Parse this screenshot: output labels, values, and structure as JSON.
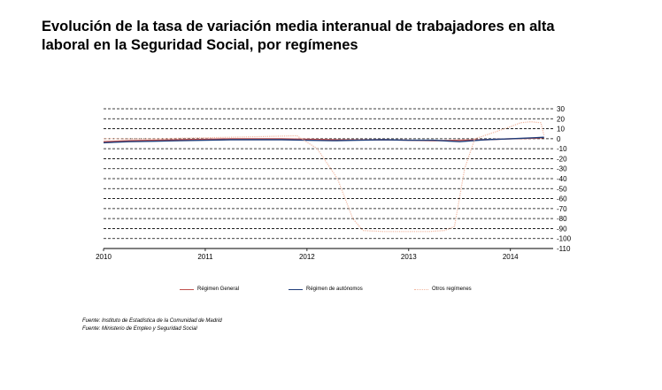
{
  "title": {
    "line1": "Evolución de la tasa de variación media interanual de trabajadores en alta",
    "line2": "laboral en la Seguridad Social, por  regímenes"
  },
  "sources": [
    "Fuente: Instituto de Estadística de la Comunidad de Madrid",
    "Fuente: Ministerio de Empleo y Seguridad Social"
  ],
  "chart_data": {
    "type": "line",
    "title": "",
    "xlabel": "",
    "ylabel": "",
    "xlim": [
      2010,
      2014.42
    ],
    "ylim": [
      -110,
      30
    ],
    "y_ticks": [
      30,
      20,
      10,
      0,
      -10,
      -20,
      -30,
      -40,
      -50,
      -60,
      -70,
      -80,
      -90,
      -100,
      -110
    ],
    "x_ticks": [
      "2010",
      "2011",
      "2012",
      "2013",
      "2014"
    ],
    "grid": "horizontal dashed",
    "legend_position": "bottom",
    "series": [
      {
        "name": "Régimen General",
        "color": "#c0504d",
        "style": "solid",
        "x": [
          2010.0,
          2010.25,
          2010.5,
          2010.75,
          2011.0,
          2011.25,
          2011.5,
          2011.75,
          2012.0,
          2012.25,
          2012.5,
          2012.75,
          2013.0,
          2013.25,
          2013.5,
          2013.75,
          2014.0,
          2014.25,
          2014.33
        ],
        "y": [
          -3,
          -2,
          -1.5,
          -1,
          -0.5,
          0,
          0,
          0,
          -0.5,
          -1,
          -1.2,
          -1,
          -1.5,
          -2,
          -1.5,
          -1,
          0,
          0.5,
          1
        ]
      },
      {
        "name": "Régimen de autónomos",
        "color": "#1f3d7a",
        "style": "solid",
        "x": [
          2010.0,
          2010.25,
          2010.5,
          2010.75,
          2011.0,
          2011.25,
          2011.5,
          2011.75,
          2012.0,
          2012.25,
          2012.5,
          2012.75,
          2013.0,
          2013.25,
          2013.5,
          2013.75,
          2014.0,
          2014.25,
          2014.33
        ],
        "y": [
          -4,
          -3,
          -2.5,
          -2,
          -1.5,
          -1,
          -1,
          -1,
          -1.5,
          -2,
          -1.5,
          -1,
          -1.5,
          -1.5,
          -3,
          -1,
          0,
          1,
          1.5
        ]
      },
      {
        "name": "Otros regímenes",
        "color": "#f2b7a0",
        "style": "dotted",
        "x": [
          2010.0,
          2010.5,
          2011.0,
          2011.5,
          2011.9,
          2012.1,
          2012.3,
          2012.45,
          2012.55,
          2012.75,
          2013.0,
          2013.2,
          2013.35,
          2013.45,
          2013.55,
          2013.65,
          2013.8,
          2014.0,
          2014.1,
          2014.2,
          2014.3,
          2014.33
        ],
        "y": [
          0,
          0,
          1,
          2,
          3,
          -10,
          -40,
          -80,
          -92,
          -93,
          -93,
          -93,
          -92,
          -88,
          -30,
          0,
          5,
          12,
          16,
          17,
          16,
          3
        ]
      }
    ]
  }
}
